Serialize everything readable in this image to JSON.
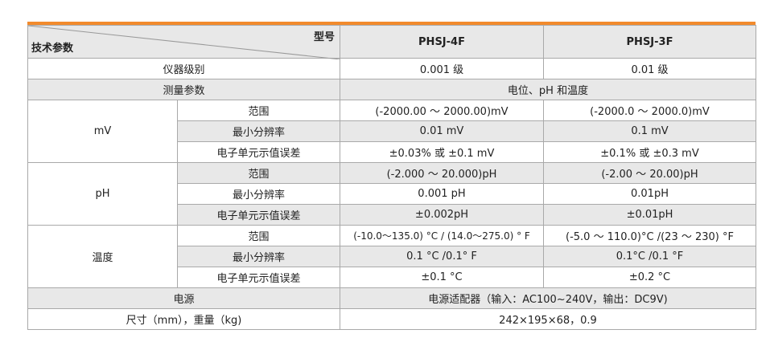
{
  "header": {
    "corner_top": "型号",
    "corner_bottom": "技术参数",
    "models": [
      "PHSJ-4F",
      "PHSJ-3F"
    ]
  },
  "rows": {
    "level": {
      "label": "仪器级别",
      "v1": "0.001 级",
      "v2": "0.01 级"
    },
    "measure": {
      "label": "测量参数",
      "value": "电位、pH 和温度"
    },
    "mv": {
      "group": "mV",
      "range": {
        "label": "范围",
        "v1": "(-2000.00 ～ 2000.00)mV",
        "v2": "(-2000.0 ～ 2000.0)mV"
      },
      "res": {
        "label": "最小分辨率",
        "v1": "0.01 mV",
        "v2": "0.1 mV"
      },
      "err": {
        "label": "电子单元示值误差",
        "v1": "±0.03% 或 ±0.1 mV",
        "v2": "±0.1% 或 ±0.3 mV"
      }
    },
    "ph": {
      "group": "pH",
      "range": {
        "label": "范围",
        "v1": "(-2.000 ～ 20.000)pH",
        "v2": "(-2.00 ～ 20.00)pH"
      },
      "res": {
        "label": "最小分辨率",
        "v1": "0.001 pH",
        "v2": "0.01pH"
      },
      "err": {
        "label": "电子单元示值误差",
        "v1": "±0.002pH",
        "v2": "±0.01pH"
      }
    },
    "temp": {
      "group": "温度",
      "range": {
        "label": "范围",
        "v1": "(-10.0～135.0) °C / (14.0～275.0) ° F",
        "v2": "(-5.0 ～ 110.0)°C /(23 ～ 230) °F"
      },
      "res": {
        "label": "最小分辨率",
        "v1": "0.1 °C /0.1° F",
        "v2": "0.1°C /0.1 °F"
      },
      "err": {
        "label": "电子单元示值误差",
        "v1": "±0.1 °C",
        "v2": "±0.2 °C"
      }
    },
    "power": {
      "label": "电源",
      "value": "电源适配器（输入：AC100~240V，输出：DC9V)"
    },
    "size": {
      "label": "尺寸（mm），重量（kg)",
      "value": "242×195×68，0.9"
    }
  },
  "colors": {
    "accent": "#f28a2c",
    "shade": "#e8e8e8"
  }
}
